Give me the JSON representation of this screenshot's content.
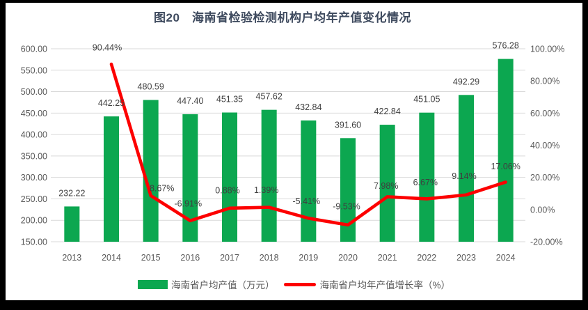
{
  "title": "图20　海南省检验检测机构户均年产值变化情况",
  "colors": {
    "bar": "#0CA750",
    "line": "#FD0000",
    "grid": "#D9D9D9",
    "axis_text": "#595959",
    "label_text": "#3F3F3F",
    "title_text": "#3E4A5E",
    "frame": "#000000",
    "background": "#FFFFFF"
  },
  "chart_data": {
    "type": "combo",
    "title": "图20　海南省检验检测机构户均年产值变化情况",
    "categories": [
      "2013",
      "2014",
      "2015",
      "2016",
      "2017",
      "2018",
      "2019",
      "2020",
      "2021",
      "2022",
      "2023",
      "2024"
    ],
    "series": [
      {
        "name": "海南省户均产值（万元）",
        "type": "bar",
        "axis": "left",
        "values": [
          232.22,
          442.25,
          480.59,
          447.4,
          451.35,
          457.62,
          432.84,
          391.6,
          422.84,
          451.05,
          492.29,
          576.28
        ],
        "labels": [
          "232.22",
          "442.25",
          "480.59",
          "447.40",
          "451.35",
          "457.62",
          "432.84",
          "391.60",
          "422.84",
          "451.05",
          "492.29",
          "576.28"
        ]
      },
      {
        "name": "海南省户均年产值增长率（%）",
        "type": "line",
        "axis": "right",
        "values": [
          null,
          90.44,
          8.67,
          -6.91,
          0.88,
          1.39,
          -5.41,
          -9.53,
          7.98,
          6.67,
          9.14,
          17.06
        ],
        "labels": [
          "",
          "90.44%",
          "8.67%",
          "-6.91%",
          "0.88%",
          "1.39%",
          "-5.41%",
          "-9.53%",
          "7.98%",
          "6.67%",
          "9.14%",
          "17.06%"
        ]
      }
    ],
    "left_axis": {
      "min": 150,
      "max": 600,
      "step": 50,
      "tick_labels": [
        "600.00",
        "550.00",
        "500.00",
        "450.00",
        "400.00",
        "350.00",
        "300.00",
        "250.00",
        "200.00",
        "150.00"
      ]
    },
    "right_axis": {
      "min": -20,
      "max": 100,
      "step": 20,
      "tick_labels": [
        "100.00%",
        "80.00%",
        "60.00%",
        "40.00%",
        "20.00%",
        "0.00%",
        "-20.00%"
      ]
    },
    "grid": true,
    "legend_position": "bottom"
  },
  "legend": {
    "items": [
      {
        "label": "海南省户均产值（万元）",
        "swatch": "bar"
      },
      {
        "label": "海南省户均年产值增长率（%）",
        "swatch": "line"
      }
    ]
  }
}
